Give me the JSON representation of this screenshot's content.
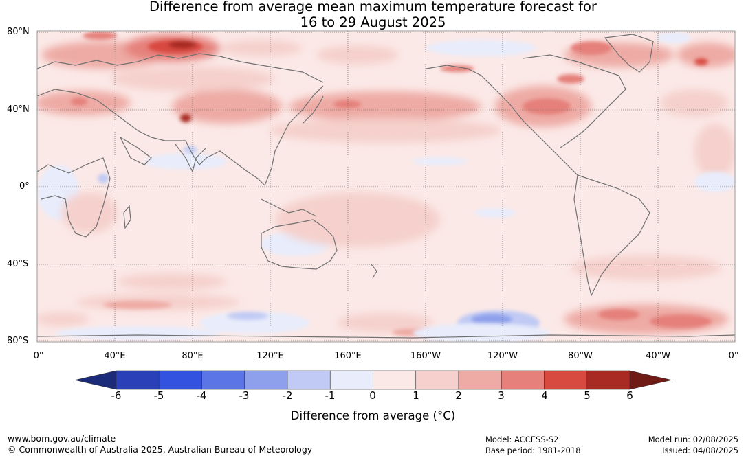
{
  "title_line1": "Difference from average mean maximum temperature forecast for",
  "title_line2": "16 to 29 August 2025",
  "latitude_labels": [
    "80°N",
    "40°N",
    "0°",
    "40°S",
    "80°S"
  ],
  "longitude_labels": [
    "0°",
    "40°E",
    "80°E",
    "120°E",
    "160°E",
    "160°W",
    "120°W",
    "80°W",
    "40°W",
    "0°"
  ],
  "colorbar": {
    "ticks": [
      "-6",
      "-5",
      "-4",
      "-3",
      "-2",
      "-1",
      "0",
      "1",
      "2",
      "3",
      "4",
      "5",
      "6"
    ],
    "title": "Difference from average (°C)",
    "colors": [
      "#1c2a7a",
      "#2a40b8",
      "#3352e0",
      "#5b75e6",
      "#8ea0ec",
      "#c0caf4",
      "#e8ecfb",
      "#fbe9e7",
      "#f5d0cc",
      "#eeaaa4",
      "#e5807a",
      "#d84a40",
      "#a82a22",
      "#701a16"
    ]
  },
  "footer": {
    "url": "www.bom.gov.au/climate",
    "copyright": "© Commonwealth of Australia 2025, Australian Bureau of Meteorology",
    "model": "Model: ACCESS-S2",
    "base_period": "Base period: 1981-2018",
    "model_run": "Model run: 02/08/2025",
    "issued": "Issued: 04/08/2025"
  }
}
